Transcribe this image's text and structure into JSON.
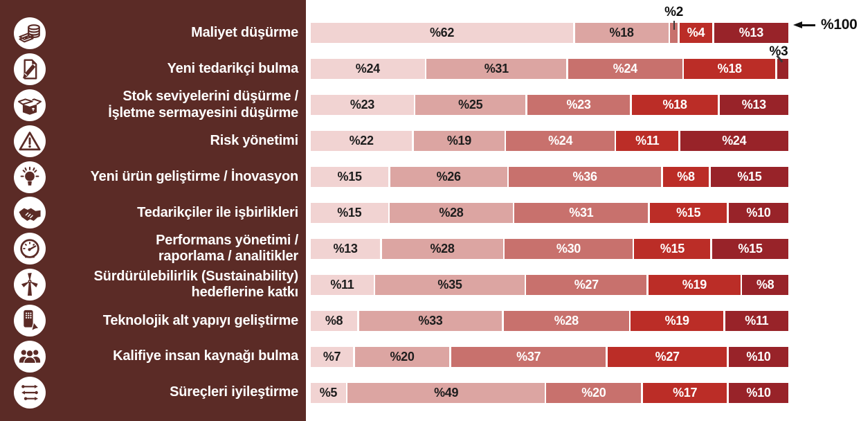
{
  "colors": {
    "sidebar_bg": "#5B2B26",
    "series": [
      "#F1D3D2",
      "#DCA5A2",
      "#C8716D",
      "#BB2D27",
      "#982329"
    ],
    "segment_text_dark": "#1D1D1D",
    "segment_text_light": "#FFFFFF",
    "annotation_text": "#101010"
  },
  "chart_data": {
    "type": "bar",
    "variant": "horizontal-stacked-100-percent",
    "unit": "percent",
    "legend": "none",
    "gridlines": false,
    "series_count": 5,
    "rows": [
      {
        "label": "Maliyet düşürme",
        "icon": "money-icon",
        "values": [
          62,
          18,
          2,
          4,
          13
        ],
        "segment_labels": [
          "%62",
          "%18",
          "",
          "%4",
          "%13"
        ]
      },
      {
        "label": "Yeni tedarikçi bulma",
        "icon": "document-pencil-icon",
        "values": [
          24,
          31,
          24,
          18,
          3
        ],
        "segment_labels": [
          "%24",
          "%31",
          "%24",
          "%18",
          ""
        ]
      },
      {
        "label": "Stok seviyelerini düşürme /\nİşletme sermayesini düşürme",
        "icon": "open-box-icon",
        "values": [
          23,
          25,
          23,
          18,
          13
        ],
        "segment_labels": [
          "%23",
          "%25",
          "%23",
          "%18",
          "%13"
        ]
      },
      {
        "label": "Risk yönetimi",
        "icon": "warning-icon",
        "values": [
          22,
          19,
          24,
          11,
          24
        ],
        "segment_labels": [
          "%22",
          "%19",
          "%24",
          "%11",
          "%24"
        ]
      },
      {
        "label": "Yeni ürün geliştirme / İnovasyon",
        "icon": "lightbulb-icon",
        "values": [
          15,
          26,
          36,
          8,
          15
        ],
        "segment_labels": [
          "%15",
          "%26",
          "%36",
          "%8",
          "%15"
        ]
      },
      {
        "label": "Tedarikçiler ile işbirlikleri",
        "icon": "handshake-icon",
        "values": [
          15,
          28,
          31,
          15,
          10
        ],
        "segment_labels": [
          "%15",
          "%28",
          "%31",
          "%15",
          "%10"
        ]
      },
      {
        "label": "Performans yönetimi /\nraporlama / analitikler",
        "icon": "gauge-icon",
        "values": [
          13,
          28,
          30,
          15,
          15
        ],
        "segment_labels": [
          "%13",
          "%28",
          "%30",
          "%15",
          "%15"
        ]
      },
      {
        "label": "Sürdürülebilirlik (Sustainability)\nhedeflerine katkı",
        "icon": "wind-turbine-icon",
        "values": [
          11,
          35,
          27,
          19,
          8
        ],
        "segment_labels": [
          "%11",
          "%35",
          "%27",
          "%19",
          "%8"
        ]
      },
      {
        "label": "Teknolojik alt yapıyı geliştirme",
        "icon": "mobile-device-icon",
        "values": [
          8,
          33,
          28,
          19,
          11
        ],
        "segment_labels": [
          "%8",
          "%33",
          "%28",
          "%19",
          "%11"
        ]
      },
      {
        "label": "Kalifiye insan kaynağı bulma",
        "icon": "people-icon",
        "values": [
          7,
          20,
          37,
          27,
          10
        ],
        "segment_labels": [
          "%7",
          "%20",
          "%37",
          "%27",
          "%10"
        ]
      },
      {
        "label": "Süreçleri iyileştirme",
        "icon": "process-flow-icon",
        "values": [
          5,
          49,
          20,
          17,
          10
        ],
        "segment_labels": [
          "%5",
          "%49",
          "%20",
          "%17",
          "%10"
        ]
      }
    ],
    "callouts": {
      "row1_small_segment": "%2",
      "row2_small_segment": "%3",
      "total": "%100"
    },
    "callout_targets": {
      "row1_small_segment": {
        "row": 0,
        "segment": 2
      },
      "row2_small_segment": {
        "row": 1,
        "segment": 4
      }
    }
  }
}
